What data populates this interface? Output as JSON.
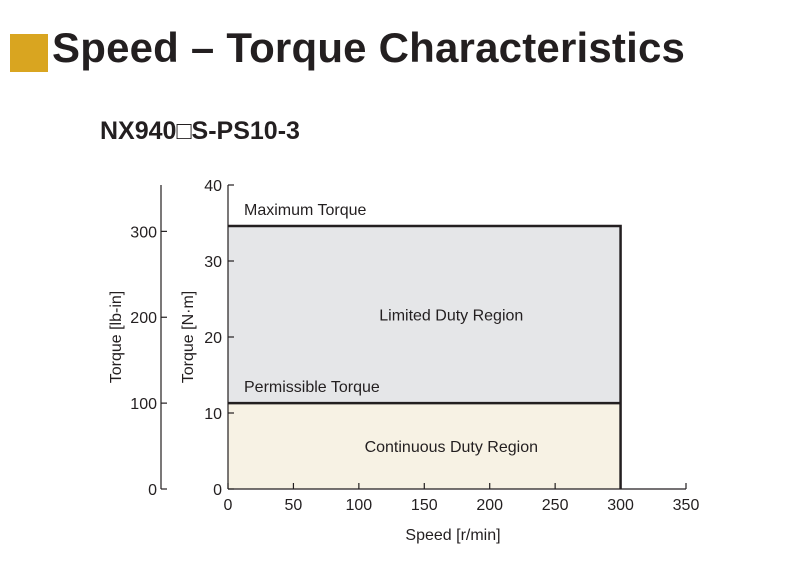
{
  "page_title": "Speed – Torque Characteristics",
  "colors": {
    "accent": "#d9a520",
    "limited_fill": "#e5e6e8",
    "continuous_fill": "#f7f2e4",
    "line": "#231f20"
  },
  "chart_data": {
    "type": "area",
    "title": "NX940□S-PS10-3",
    "xlabel": "Speed [r/min]",
    "ylabel": "Torque [N·m]",
    "ylabel_secondary": "Torque [lb-in]",
    "xlim": [
      0,
      350
    ],
    "ylim": [
      0,
      40
    ],
    "ylim_secondary": [
      0,
      354
    ],
    "x_ticks": [
      0,
      50,
      100,
      150,
      200,
      250,
      300,
      350
    ],
    "y_ticks": [
      0,
      10,
      20,
      30,
      40
    ],
    "y_ticks_secondary": [
      0,
      100,
      200,
      300
    ],
    "grid": false,
    "series": [
      {
        "name": "Maximum Torque",
        "x": [
          0,
          300,
          300
        ],
        "y": [
          34.6,
          34.6,
          0
        ]
      },
      {
        "name": "Permissible Torque",
        "x": [
          0,
          300
        ],
        "y": [
          11.3,
          11.3
        ]
      }
    ],
    "regions": [
      {
        "label": "Limited Duty Region",
        "x": [
          0,
          300
        ],
        "y": [
          11.3,
          34.6
        ]
      },
      {
        "label": "Continuous Duty Region",
        "x": [
          0,
          300
        ],
        "y": [
          0,
          11.3
        ]
      }
    ]
  }
}
